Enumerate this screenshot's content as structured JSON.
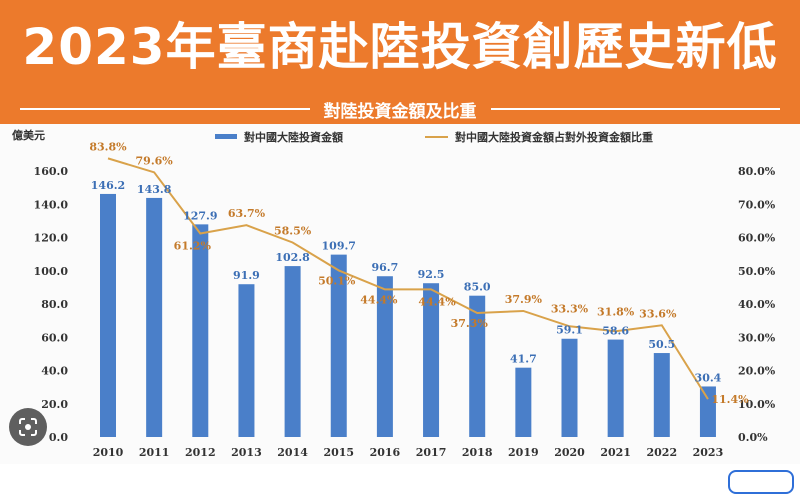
{
  "header": {
    "title": "2023年臺商赴陸投資創歷史新低",
    "subtitle": "對陸投資金額及比重",
    "background_color": "#ec7a2c"
  },
  "chart_data": {
    "type": "bar+line",
    "title": "對陸投資金額及比重",
    "left_unit": "億美元",
    "categories": [
      "2010",
      "2011",
      "2012",
      "2013",
      "2014",
      "2015",
      "2016",
      "2017",
      "2018",
      "2019",
      "2020",
      "2021",
      "2022",
      "2023"
    ],
    "series": [
      {
        "name": "對中國大陸投資金額",
        "type": "bar",
        "axis": "left",
        "color": "#4a7fc9",
        "values": [
          146.2,
          143.8,
          127.9,
          91.9,
          102.8,
          109.7,
          96.7,
          92.5,
          85.0,
          41.7,
          59.1,
          58.6,
          50.5,
          30.4
        ],
        "labels": [
          "146.2",
          "143.8",
          "127.9",
          "91.9",
          "102.8",
          "109.7",
          "96.7",
          "92.5",
          "85.0",
          "41.7",
          "59.1",
          "58.6",
          "50.5",
          "30.4"
        ]
      },
      {
        "name": "對中國大陸投資金額占對外投資金額比重",
        "type": "line",
        "axis": "right",
        "color": "#d9a24a",
        "values": [
          83.8,
          79.6,
          61.2,
          63.7,
          58.5,
          50.1,
          44.4,
          44.4,
          37.3,
          37.9,
          33.3,
          31.8,
          33.6,
          11.4
        ],
        "labels": [
          "83.8%",
          "79.6%",
          "61.2%",
          "63.7%",
          "58.5%",
          "50.1%",
          "44.4%",
          "44.4%",
          "37.3%",
          "37.9%",
          "33.3%",
          "31.8%",
          "33.6%",
          "11.4%"
        ]
      }
    ],
    "ylim_left": [
      0,
      160
    ],
    "ylim_right": [
      0,
      80
    ],
    "left_ticks": [
      "0.0",
      "20.0",
      "40.0",
      "60.0",
      "80.0",
      "100.0",
      "120.0",
      "140.0",
      "160.0"
    ],
    "right_ticks": [
      "0.0%",
      "10.0%",
      "20.0%",
      "30.0%",
      "40.0%",
      "50.0%",
      "60.0%",
      "70.0%",
      "80.0%"
    ],
    "grid": false,
    "legend_position": "top"
  }
}
